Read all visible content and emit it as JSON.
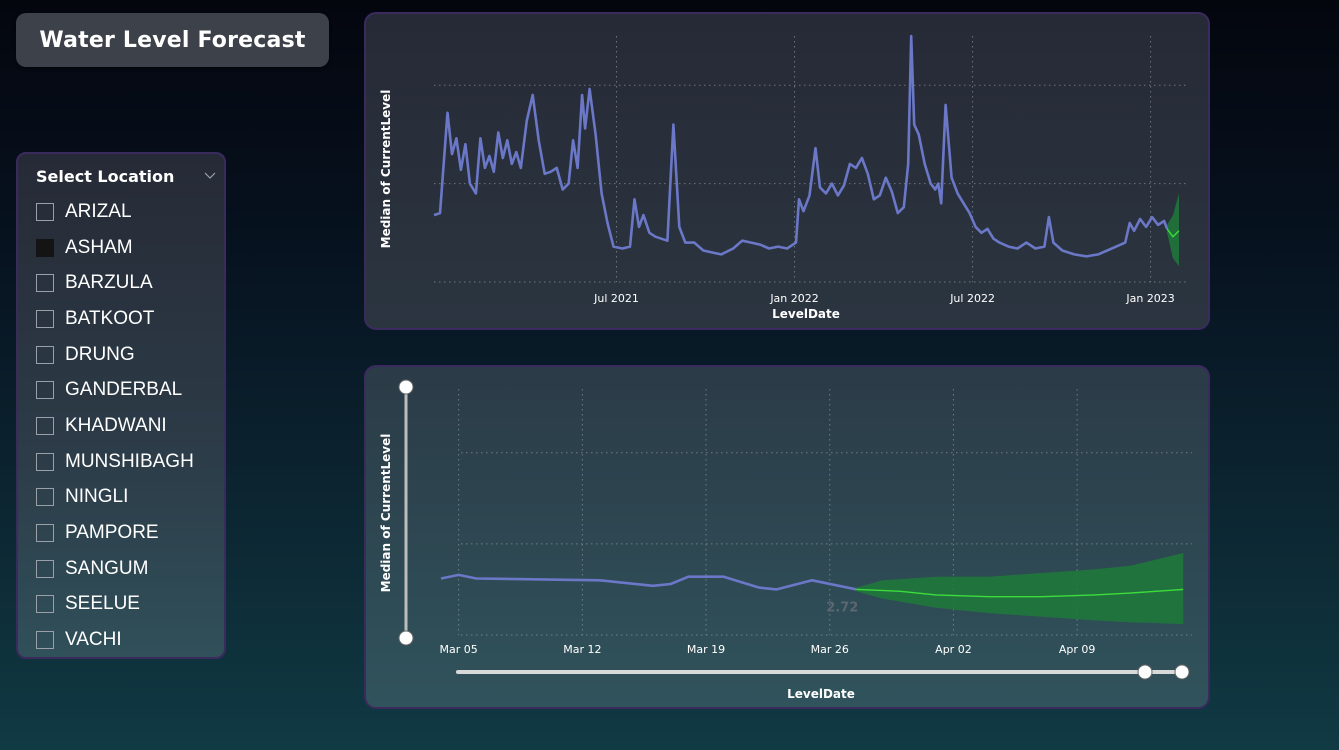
{
  "title": "Water Level Forecast",
  "slicer": {
    "label": "Select Location",
    "items": [
      {
        "label": "ARIZAL",
        "checked": false
      },
      {
        "label": "ASHAM",
        "checked": true
      },
      {
        "label": "BARZULA",
        "checked": false
      },
      {
        "label": "BATKOOT",
        "checked": false
      },
      {
        "label": "DRUNG",
        "checked": false
      },
      {
        "label": "GANDERBAL",
        "checked": false
      },
      {
        "label": "KHADWANI",
        "checked": false
      },
      {
        "label": "MUNSHIBAGH",
        "checked": false
      },
      {
        "label": "NINGLI",
        "checked": false
      },
      {
        "label": "PAMPORE",
        "checked": false
      },
      {
        "label": "SANGUM",
        "checked": false
      },
      {
        "label": "SEELUE",
        "checked": false
      },
      {
        "label": "VACHI",
        "checked": false
      }
    ]
  },
  "colors": {
    "actual": "#6b77c7",
    "forecast": "#3ddc3d",
    "band": "#1e7a3a"
  },
  "chart_data": [
    {
      "type": "line",
      "xlabel": "LevelDate",
      "ylabel": "Median of CurrentLevel",
      "ylim": [
        0,
        12.5
      ],
      "yticks": [
        0,
        5,
        10
      ],
      "xticks": [
        "Jul 2021",
        "Jan 2022",
        "Jul 2022",
        "Jan 2023"
      ],
      "grid": true,
      "series": [
        {
          "points": [
            [
              0,
              3.4
            ],
            [
              0.2,
              3.5
            ],
            [
              0.45,
              8.6
            ],
            [
              0.6,
              6.5
            ],
            [
              0.75,
              7.3
            ],
            [
              0.9,
              5.7
            ],
            [
              1.05,
              7.0
            ],
            [
              1.2,
              5.0
            ],
            [
              1.4,
              4.5
            ],
            [
              1.55,
              7.3
            ],
            [
              1.7,
              5.8
            ],
            [
              1.85,
              6.4
            ],
            [
              2.0,
              5.6
            ],
            [
              2.15,
              7.6
            ],
            [
              2.3,
              6.3
            ],
            [
              2.45,
              7.2
            ],
            [
              2.6,
              6.0
            ],
            [
              2.75,
              6.6
            ],
            [
              2.9,
              5.8
            ],
            [
              3.1,
              8.2
            ],
            [
              3.3,
              9.5
            ],
            [
              3.5,
              7.2
            ],
            [
              3.7,
              5.5
            ],
            [
              3.9,
              5.6
            ],
            [
              4.1,
              5.8
            ],
            [
              4.3,
              4.7
            ],
            [
              4.5,
              5.0
            ],
            [
              4.65,
              7.2
            ],
            [
              4.8,
              5.8
            ],
            [
              4.95,
              9.5
            ],
            [
              5.05,
              7.8
            ],
            [
              5.2,
              9.8
            ],
            [
              5.4,
              7.5
            ],
            [
              5.6,
              4.5
            ],
            [
              5.8,
              3.0
            ],
            [
              6.0,
              1.8
            ],
            [
              6.3,
              1.7
            ],
            [
              6.55,
              1.8
            ],
            [
              6.7,
              4.2
            ],
            [
              6.85,
              2.8
            ],
            [
              7.0,
              3.4
            ],
            [
              7.2,
              2.5
            ],
            [
              7.4,
              2.3
            ],
            [
              7.6,
              2.2
            ],
            [
              7.8,
              2.1
            ],
            [
              8.0,
              8.0
            ],
            [
              8.2,
              2.8
            ],
            [
              8.4,
              2.0
            ],
            [
              8.7,
              2.0
            ],
            [
              9.0,
              1.6
            ],
            [
              9.3,
              1.5
            ],
            [
              9.6,
              1.4
            ],
            [
              10.0,
              1.7
            ],
            [
              10.3,
              2.1
            ],
            [
              10.6,
              2.0
            ],
            [
              10.9,
              1.9
            ],
            [
              11.2,
              1.7
            ],
            [
              11.5,
              1.8
            ],
            [
              11.8,
              1.7
            ],
            [
              12.1,
              2.0
            ],
            [
              12.2,
              4.2
            ],
            [
              12.35,
              3.6
            ],
            [
              12.55,
              4.4
            ],
            [
              12.75,
              6.8
            ],
            [
              12.9,
              4.8
            ],
            [
              13.1,
              4.5
            ],
            [
              13.3,
              5.0
            ],
            [
              13.5,
              4.4
            ],
            [
              13.7,
              4.9
            ],
            [
              13.9,
              6.0
            ],
            [
              14.1,
              5.8
            ],
            [
              14.3,
              6.3
            ],
            [
              14.5,
              5.5
            ],
            [
              14.7,
              4.2
            ],
            [
              14.9,
              4.4
            ],
            [
              15.1,
              5.3
            ],
            [
              15.3,
              4.6
            ],
            [
              15.5,
              3.5
            ],
            [
              15.7,
              3.8
            ],
            [
              15.85,
              6.0
            ],
            [
              15.95,
              12.5
            ],
            [
              16.05,
              8.0
            ],
            [
              16.2,
              7.5
            ],
            [
              16.4,
              6.0
            ],
            [
              16.6,
              5.0
            ],
            [
              16.75,
              4.7
            ],
            [
              16.85,
              5.0
            ],
            [
              16.95,
              4.0
            ],
            [
              17.1,
              9.0
            ],
            [
              17.3,
              5.3
            ],
            [
              17.5,
              4.5
            ],
            [
              17.7,
              4.0
            ],
            [
              17.9,
              3.5
            ],
            [
              18.1,
              2.8
            ],
            [
              18.3,
              2.5
            ],
            [
              18.5,
              2.7
            ],
            [
              18.7,
              2.2
            ],
            [
              18.9,
              2.0
            ],
            [
              19.2,
              1.8
            ],
            [
              19.5,
              1.7
            ],
            [
              19.8,
              2.0
            ],
            [
              20.1,
              1.7
            ],
            [
              20.4,
              1.8
            ],
            [
              20.55,
              3.3
            ],
            [
              20.7,
              2.0
            ],
            [
              21.0,
              1.6
            ],
            [
              21.4,
              1.4
            ],
            [
              21.8,
              1.3
            ],
            [
              22.2,
              1.4
            ],
            [
              22.5,
              1.6
            ],
            [
              22.8,
              1.8
            ],
            [
              23.1,
              2.0
            ],
            [
              23.25,
              3.0
            ],
            [
              23.4,
              2.6
            ],
            [
              23.6,
              3.2
            ],
            [
              23.8,
              2.8
            ],
            [
              24.0,
              3.3
            ],
            [
              24.2,
              2.9
            ],
            [
              24.4,
              3.1
            ],
            [
              24.5,
              2.7
            ]
          ]
        },
        {
          "forecast_points": [
            [
              24.5,
              2.7
            ],
            [
              24.7,
              2.3
            ],
            [
              24.9,
              2.6
            ]
          ],
          "band_upper": [
            [
              24.5,
              2.9
            ],
            [
              24.7,
              3.4
            ],
            [
              24.9,
              4.5
            ]
          ],
          "band_lower": [
            [
              24.5,
              2.5
            ],
            [
              24.7,
              1.2
            ],
            [
              24.9,
              0.8
            ]
          ]
        }
      ]
    },
    {
      "type": "line",
      "xlabel": "LevelDate",
      "ylabel": "Median of CurrentLevel",
      "ylim": [
        0,
        13.5
      ],
      "yticks": [
        0,
        5,
        10
      ],
      "xticks": [
        "Mar 05",
        "Mar 12",
        "Mar 19",
        "Mar 26",
        "Apr 02",
        "Apr 09"
      ],
      "grid": true,
      "series": [
        {
          "points": [
            [
              -1,
              3.1
            ],
            [
              0,
              3.3
            ],
            [
              1,
              3.1
            ],
            [
              8,
              3.0
            ],
            [
              11,
              2.7
            ],
            [
              12,
              2.8
            ],
            [
              13,
              3.2
            ],
            [
              15,
              3.2
            ],
            [
              17,
              2.6
            ],
            [
              18,
              2.5
            ],
            [
              20,
              3.0
            ],
            [
              22.5,
              2.5
            ]
          ]
        },
        {
          "forecast_points": [
            [
              22.5,
              2.5
            ],
            [
              25,
              2.4
            ],
            [
              27,
              2.2
            ],
            [
              30,
              2.1
            ],
            [
              33,
              2.1
            ],
            [
              36,
              2.2
            ],
            [
              38,
              2.3
            ],
            [
              41,
              2.5
            ]
          ],
          "band_upper": [
            [
              22.5,
              2.6
            ],
            [
              24,
              3.0
            ],
            [
              27,
              3.2
            ],
            [
              30,
              3.2
            ],
            [
              33,
              3.4
            ],
            [
              36,
              3.6
            ],
            [
              38,
              3.8
            ],
            [
              41,
              4.5
            ]
          ],
          "band_lower": [
            [
              22.5,
              2.4
            ],
            [
              24,
              2.0
            ],
            [
              27,
              1.5
            ],
            [
              30,
              1.2
            ],
            [
              33,
              1.0
            ],
            [
              36,
              0.8
            ],
            [
              38,
              0.7
            ],
            [
              41,
              0.6
            ]
          ]
        }
      ],
      "annotation": "2.72"
    }
  ]
}
